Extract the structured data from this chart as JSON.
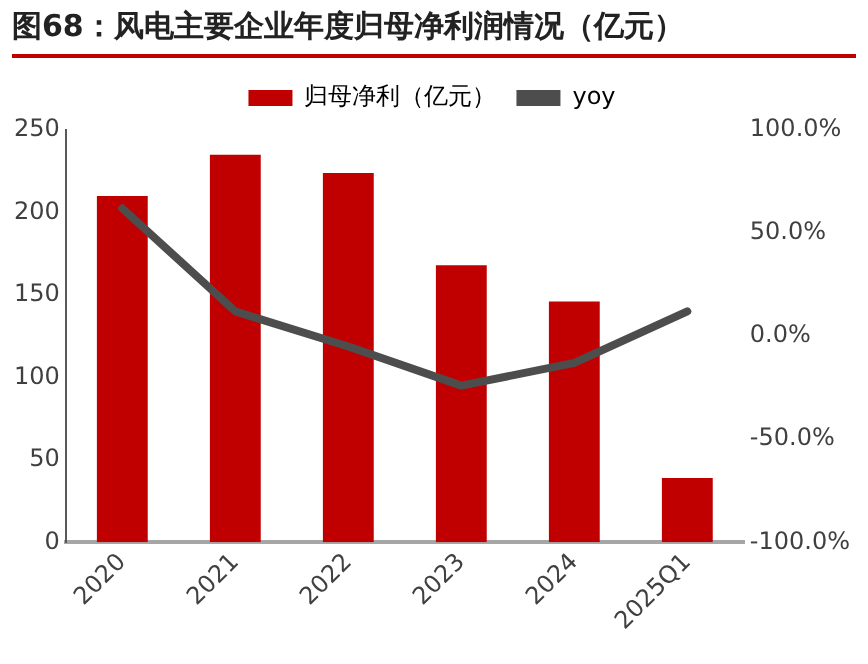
{
  "chart_data": {
    "type": "bar",
    "title": "图68：风电主要企业年度归母净利润情况（亿元）",
    "categories": [
      "2020",
      "2021",
      "2022",
      "2023",
      "2024",
      "2025Q1"
    ],
    "series": [
      {
        "name": "归母净利（亿元）",
        "color": "#c00000",
        "values": [
          210,
          235,
          224,
          168,
          146,
          39
        ]
      },
      {
        "name": "yoy",
        "type": "line",
        "axis": "y2",
        "color": "#4d4d4d",
        "values": [
          62,
          12,
          -5,
          -24,
          -13,
          12
        ]
      }
    ],
    "ylim": [
      0,
      250
    ],
    "yticks": [
      0,
      50,
      100,
      150,
      200,
      250
    ],
    "y2lim": [
      -100,
      100
    ],
    "y2ticks": [
      {
        "value": -100,
        "label": "-100.0%"
      },
      {
        "value": -50,
        "label": "-50.0%"
      },
      {
        "value": 0,
        "label": "0.0%"
      },
      {
        "value": 50,
        "label": "50.0%"
      },
      {
        "value": 100,
        "label": "100.0%"
      }
    ],
    "legend": "top",
    "grid": false,
    "marker": "none",
    "line_style": "solid"
  }
}
